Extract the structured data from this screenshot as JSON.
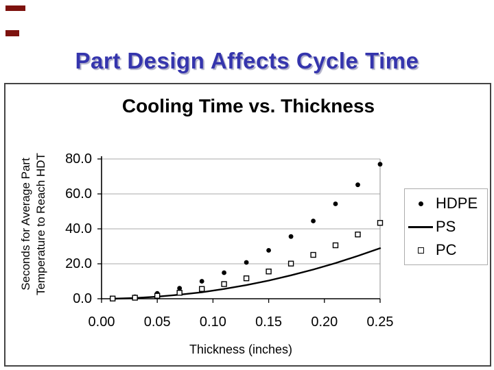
{
  "slide": {
    "title": "Part Design Affects Cycle Time"
  },
  "colors": {
    "title_text": "#3535AD",
    "title_shadow": "#AFAFC8",
    "accent_bar": "#7D120E",
    "chart_border": "#444444",
    "gridline": "#A8A8A8",
    "plot_border": "#909090",
    "axis": "#000000",
    "legend_border": "#ABABAB",
    "series_color": "#000000"
  },
  "chart_data": {
    "type": "scatter",
    "title": "Cooling Time vs. Thickness",
    "xlabel": "Thickness (inches)",
    "grid": true,
    "legend_position": "right",
    "y_axis": {
      "label_line1": "Seconds for Average Part",
      "label_line2": "Temperature to Reach HDT",
      "min": 0,
      "max": 80,
      "ticks": [
        0,
        20,
        40,
        60,
        80
      ],
      "tick_labels": [
        "0.0",
        "20.0",
        "40.0",
        "60.0",
        "80.0"
      ]
    },
    "x_axis": {
      "min": 0,
      "max": 0.25,
      "ticks": [
        0,
        0.05,
        0.1,
        0.15,
        0.2,
        0.25
      ],
      "tick_labels": [
        "0.00",
        "0.05",
        "0.10",
        "0.15",
        "0.20",
        "0.25"
      ]
    },
    "x": [
      0.01,
      0.03,
      0.05,
      0.07,
      0.09,
      0.11,
      0.13,
      0.15,
      0.17,
      0.19,
      0.21,
      0.23,
      0.25
    ],
    "series": [
      {
        "name": "HDPE",
        "style": "filled-circle",
        "values": [
          0.1,
          1.1,
          3.1,
          6.0,
          10.0,
          14.9,
          20.8,
          27.7,
          35.6,
          44.5,
          54.3,
          65.2,
          77.0
        ]
      },
      {
        "name": "PS",
        "style": "line",
        "values": [
          0.0,
          0.4,
          1.2,
          2.3,
          3.7,
          5.6,
          7.8,
          10.4,
          13.4,
          16.7,
          20.4,
          24.5,
          28.9
        ]
      },
      {
        "name": "PC",
        "style": "open-square",
        "values": [
          0.1,
          0.6,
          1.7,
          3.4,
          5.6,
          8.4,
          11.7,
          15.6,
          20.1,
          25.1,
          30.6,
          36.8,
          43.4
        ]
      }
    ]
  }
}
